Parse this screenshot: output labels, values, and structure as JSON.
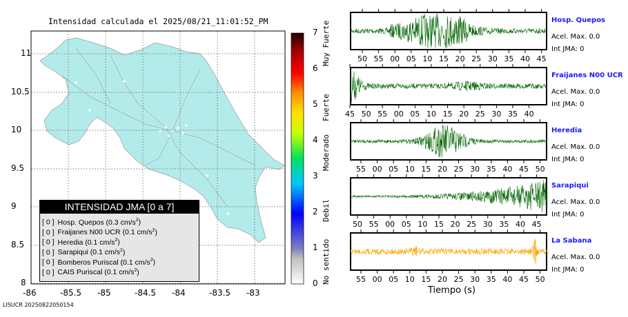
{
  "map": {
    "title": "Intensidad calculada el 2025/08/21_11:01:52_PM",
    "x_ticks": [
      "-86",
      "-85.5",
      "-85",
      "-84.5",
      "-84",
      "-83.5",
      "-83"
    ],
    "y_ticks": [
      "11",
      "10.5",
      "10",
      "9.5",
      "9",
      "8.5",
      "8"
    ],
    "land_color": "#b3ebeb"
  },
  "colorbar": {
    "ticks": [
      "0",
      "1",
      "2",
      "3",
      "4",
      "5",
      "6",
      "7"
    ],
    "labels": [
      "No sentido",
      "Debil",
      "Moderado",
      "Fuerte",
      "Muy Fuerte"
    ]
  },
  "legend": {
    "title": "INTENSIDAD JMA [0 a 7]",
    "items": [
      {
        "int": "[ 0 ]",
        "name": "Hosp. Quepos (0.3 cm/s",
        "sup": "2",
        ")": ")"
      },
      {
        "int": "[ 0 ]",
        "name": "Fraijanes N00 UCR (0.1 cm/s",
        "sup": "2"
      },
      {
        "int": "[ 0 ]",
        "name": "Heredia (0.1 cm/s",
        "sup": "2"
      },
      {
        "int": "[ 0 ]",
        "name": "Sarapiqui (0.1 cm/s",
        "sup": "2"
      },
      {
        "int": "[ 0 ]",
        "name": "Bomberos Puriscal (0.1 cm/s",
        "sup": "2"
      },
      {
        "int": "[ 0 ]",
        "name": "CAIS Puriscal (0.1 cm/s",
        "sup": "2"
      }
    ]
  },
  "chart_data": [
    {
      "type": "line",
      "station": "Hosp. Quepos",
      "acel": "Acel. Max. 0.0",
      "int": "Int JMA: 0",
      "color": "#006400",
      "x_ticks": [
        "50",
        "55",
        "00",
        "05",
        "10",
        "15",
        "20",
        "25",
        "30",
        "35",
        "40",
        "45"
      ]
    },
    {
      "type": "line",
      "station": "Fraijanes N00 UCR",
      "acel": "Acel. Max. 0.0",
      "int": "Int JMA: 0",
      "color": "#006400",
      "x_ticks": [
        "45",
        "50",
        "55",
        "00",
        "05",
        "10",
        "15",
        "20",
        "25",
        "30",
        "35",
        "40"
      ]
    },
    {
      "type": "line",
      "station": "Heredia",
      "acel": "Acel. Max. 0.0",
      "int": "Int JMA: 0",
      "color": "#006400",
      "x_ticks": [
        "55",
        "00",
        "05",
        "10",
        "15",
        "20",
        "25",
        "30",
        "35",
        "40",
        "45",
        "50"
      ]
    },
    {
      "type": "line",
      "station": "Sarapiqui",
      "acel": "Acel. Max. 0.0",
      "int": "Int JMA: 0",
      "color": "#006400",
      "x_ticks": [
        "50",
        "55",
        "00",
        "05",
        "10",
        "15",
        "20",
        "25",
        "30",
        "35",
        "40",
        "45"
      ]
    },
    {
      "type": "line",
      "station": "La Sabana",
      "acel": "Acel. Max. 0.0",
      "int": "Int JMA: 0",
      "color": "#ffa500",
      "x_ticks": [
        "55",
        "00",
        "05",
        "10",
        "15",
        "20",
        "25",
        "30",
        "35",
        "40",
        "45",
        "50"
      ]
    }
  ],
  "xlabel": "Tiempo (s)",
  "footer": "LISUCR 20250822050154"
}
